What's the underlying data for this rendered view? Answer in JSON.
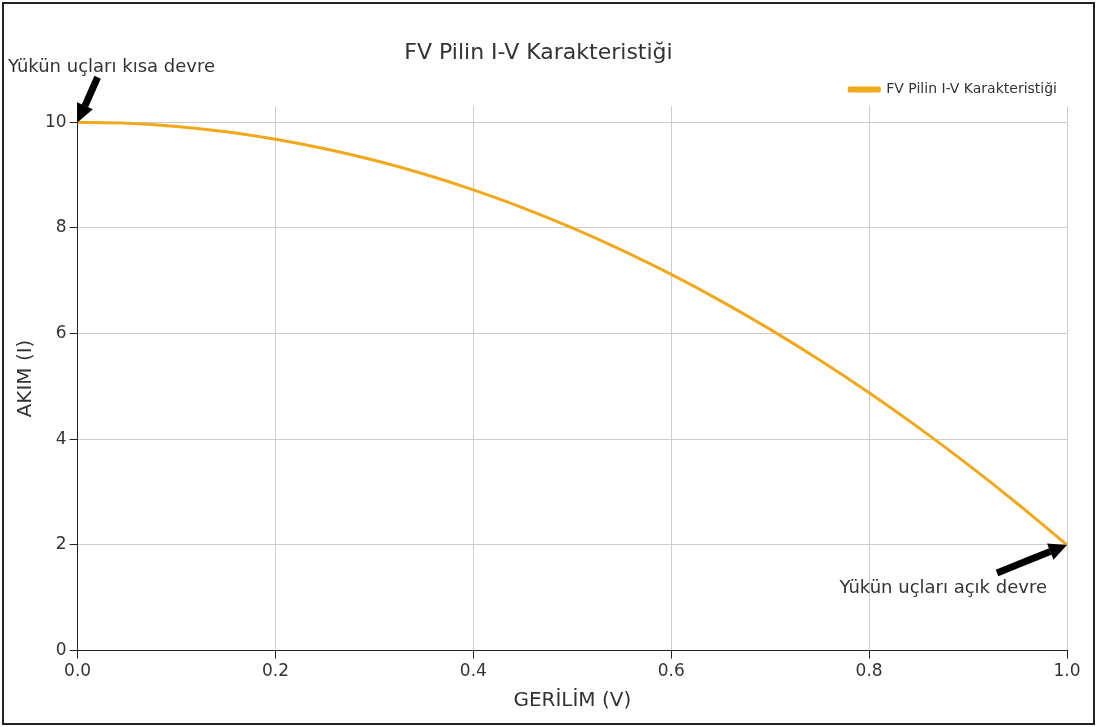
{
  "chart_data": {
    "type": "line",
    "title": "FV Pilin I-V Karakteristiği",
    "xlabel": "GERİLİM (V)",
    "ylabel": "AKIM (I)",
    "x": [
      0,
      0.05,
      0.1,
      0.15,
      0.2,
      0.25,
      0.3,
      0.35,
      0.4,
      0.45,
      0.5,
      0.55,
      0.6,
      0.65,
      0.7,
      0.75,
      0.8,
      0.85,
      0.9,
      0.95,
      1.0
    ],
    "series": [
      {
        "name": "FV Pilin I-V Karakteristiği",
        "color": "#f0a81c",
        "values": [
          10,
          9.98,
          9.92,
          9.82,
          9.68,
          9.5,
          9.28,
          9.02,
          8.72,
          8.38,
          8,
          7.58,
          7.12,
          6.62,
          6.08,
          5.5,
          4.88,
          4.22,
          3.52,
          2.78,
          2
        ]
      }
    ],
    "xlim": [
      0,
      1
    ],
    "xticks": [
      {
        "value": 0,
        "label": "0.0"
      },
      {
        "value": 0.2,
        "label": "0.2"
      },
      {
        "value": 0.4,
        "label": "0.4"
      },
      {
        "value": 0.6,
        "label": "0.6"
      },
      {
        "value": 0.8,
        "label": "0.8"
      },
      {
        "value": 1,
        "label": "1.0"
      }
    ],
    "ylim": [
      0,
      10.3
    ],
    "yticks": [
      0,
      2,
      4,
      6,
      8,
      10
    ],
    "annotations": [
      {
        "text": "Yükün uçları kısa devre",
        "x": 0,
        "y": 10
      },
      {
        "text": "Yükün uçları açık devre",
        "x": 1,
        "y": 2
      }
    ],
    "grid": true,
    "legend": "top right",
    "marker": "none",
    "line_style": "solid"
  }
}
